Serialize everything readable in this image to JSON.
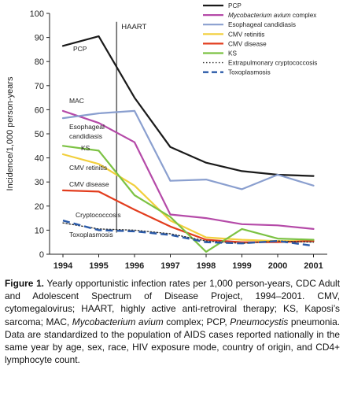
{
  "chart_data": {
    "type": "line",
    "title": "",
    "xlabel": "",
    "ylabel": "Incidence/1,000 person-years",
    "x": [
      1994,
      1995,
      1996,
      1997,
      1998,
      1999,
      2000,
      2001
    ],
    "ylim": [
      0,
      100
    ],
    "yticks": [
      0,
      10,
      20,
      30,
      40,
      50,
      60,
      70,
      80,
      90,
      100
    ],
    "grid": false,
    "legend": "top-right",
    "series": [
      {
        "name": "PCP",
        "color": "#1a1a1a",
        "style": "solid",
        "values": [
          86.5,
          90.5,
          65,
          44.5,
          38,
          34.5,
          33,
          32.5
        ]
      },
      {
        "name": "Mycobacterium avium complex",
        "italic_prefix": "Mycobacterium avium",
        "suffix": " complex",
        "color": "#b54aa8",
        "style": "solid",
        "values": [
          59.5,
          54.5,
          46.5,
          16.5,
          15,
          12.5,
          12,
          10.5
        ]
      },
      {
        "name": "Esophageal candidiasis",
        "color": "#8a9fcf",
        "style": "solid",
        "values": [
          56.5,
          58.5,
          59.5,
          30.5,
          31,
          27,
          33,
          28.5
        ]
      },
      {
        "name": "CMV retinitis",
        "color": "#f2cf3c",
        "style": "solid",
        "values": [
          41.5,
          37.5,
          28.5,
          14,
          7,
          6,
          5.5,
          5.5
        ]
      },
      {
        "name": "CMV disease",
        "color": "#e23d1e",
        "style": "solid",
        "values": [
          26.5,
          26,
          18.5,
          11.5,
          6,
          5,
          5,
          5.5
        ]
      },
      {
        "name": "KS",
        "color": "#7cc243",
        "style": "solid",
        "values": [
          45,
          43,
          24.5,
          15.5,
          1,
          10.5,
          6.5,
          6
        ]
      },
      {
        "name": "Extrapulmonary cryptococcosis",
        "color": "#333333",
        "style": "dotted",
        "values": [
          13,
          10.5,
          10,
          8.5,
          5.5,
          4.5,
          5.5,
          5
        ]
      },
      {
        "name": "Toxoplasmosis",
        "color": "#2a5aa8",
        "style": "dashed",
        "values": [
          14,
          10,
          9.5,
          8,
          5,
          4.5,
          5.5,
          3.5
        ]
      }
    ],
    "annotations": {
      "haart": "HAART",
      "haart_x": 1995.5,
      "labels": [
        {
          "text": "PCP",
          "series": "PCP"
        },
        {
          "text": "MAC",
          "series": "Mycobacterium avium complex"
        },
        {
          "text": "Esophageal",
          "series": "Esophageal candidiasis"
        },
        {
          "text": "candidiasis",
          "series": "Esophageal candidiasis"
        },
        {
          "text": "KS",
          "series": "KS"
        },
        {
          "text": "CMV retinitis",
          "series": "CMV retinitis"
        },
        {
          "text": "CMV disease",
          "series": "CMV disease"
        },
        {
          "text": "Cryptococcosis",
          "series": "Extrapulmonary cryptococcosis"
        },
        {
          "text": "Toxoplasmosis",
          "series": "Toxoplasmosis"
        }
      ]
    }
  },
  "caption": {
    "figure_label": "Figure 1.",
    "text_1": " Yearly opportunistic infection rates per 1,000 person-years, CDC Adult and Adolescent Spectrum of Disease Project, 1994–2001. CMV, cytomegalovirus; HAART, highly active anti-retroviral therapy; KS, Kaposi’s sarcoma; MAC, ",
    "italic_1": "Mycobacterium avium",
    "text_2": " complex; PCP, ",
    "italic_2": "Pneumocystis",
    "text_3": " pneumonia. Data are standardized to the population of AIDS cases reported nationally in the same year by age, sex, race, HIV exposure mode, country of origin, and CD4+ lymphocyte count."
  }
}
